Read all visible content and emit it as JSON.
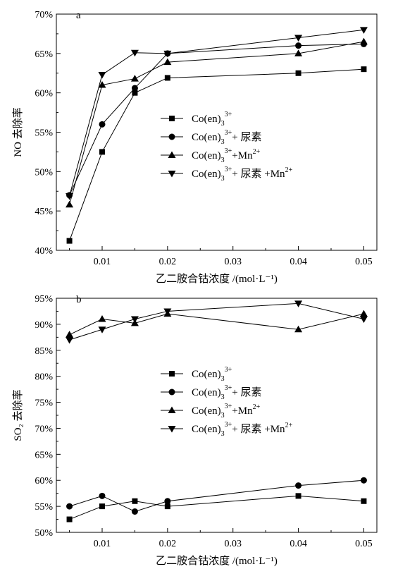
{
  "chart_data": [
    {
      "id": "a",
      "type": "line",
      "panel_label": "a",
      "xlabel": "乙二胺合钴浓度 /(mol·L⁻¹)",
      "ylabel": "NO 去除率",
      "x": [
        0.005,
        0.01,
        0.015,
        0.02,
        0.04,
        0.05
      ],
      "xlim": [
        0.003,
        0.052
      ],
      "ylim": [
        40,
        70
      ],
      "xticks": [
        0.01,
        0.02,
        0.03,
        0.04,
        0.05
      ],
      "xtick_labels": [
        "0.01",
        "0.02",
        "0.03",
        "0.04",
        "0.05"
      ],
      "yticks": [
        40,
        45,
        50,
        55,
        60,
        65,
        70
      ],
      "ytick_labels": [
        "40%",
        "45%",
        "50%",
        "55%",
        "60%",
        "65%",
        "70%"
      ],
      "grid": false,
      "legend_position": "center-right",
      "series": [
        {
          "name": "Co(en)3 3+",
          "label_base": "Co(en)",
          "label_sub": "3",
          "label_sup": "3+",
          "label_tail": "",
          "label_tail_sup": "",
          "marker": "square",
          "values": [
            41.2,
            52.5,
            60.0,
            61.9,
            62.5,
            63.0
          ]
        },
        {
          "name": "Co(en)3 3+ + 尿素",
          "label_base": "Co(en)",
          "label_sub": "3",
          "label_sup": "3+",
          "label_tail": "+ 尿素",
          "label_tail_sup": "",
          "marker": "circle",
          "values": [
            47.0,
            56.0,
            60.6,
            65.0,
            66.0,
            66.2
          ]
        },
        {
          "name": "Co(en)3 3+ +Mn2+",
          "label_base": "Co(en)",
          "label_sub": "3",
          "label_sup": "3+",
          "label_tail": "+Mn",
          "label_tail_sup": "2+",
          "marker": "triangle-up",
          "values": [
            45.8,
            61.0,
            61.8,
            63.9,
            65.0,
            66.5
          ]
        },
        {
          "name": "Co(en)3 3+ + 尿素 +Mn2+",
          "label_base": "Co(en)",
          "label_sub": "3",
          "label_sup": "3+",
          "label_tail": "+ 尿素 +Mn",
          "label_tail_sup": "2+",
          "marker": "triangle-down",
          "values": [
            46.9,
            62.3,
            65.1,
            65.0,
            67.0,
            68.0
          ]
        }
      ]
    },
    {
      "id": "b",
      "type": "line",
      "panel_label": "b",
      "xlabel": "乙二胺合钴浓度 /(mol·L⁻¹)",
      "ylabel": "SO₂ 去除率",
      "x": [
        0.005,
        0.01,
        0.015,
        0.02,
        0.04,
        0.05
      ],
      "xlim": [
        0.003,
        0.052
      ],
      "ylim": [
        50,
        95
      ],
      "xticks": [
        0.01,
        0.02,
        0.03,
        0.04,
        0.05
      ],
      "xtick_labels": [
        "0.01",
        "0.02",
        "0.03",
        "0.04",
        "0.05"
      ],
      "yticks": [
        50,
        55,
        60,
        65,
        70,
        75,
        80,
        85,
        90,
        95
      ],
      "ytick_labels": [
        "50%",
        "55%",
        "60%",
        "65%",
        "70%",
        "75%",
        "80%",
        "85%",
        "90%",
        "95%"
      ],
      "grid": false,
      "legend_position": "center",
      "series": [
        {
          "name": "Co(en)3 3+",
          "label_base": "Co(en)",
          "label_sub": "3",
          "label_sup": "3+",
          "label_tail": "",
          "label_tail_sup": "",
          "marker": "square",
          "values": [
            52.5,
            55.0,
            56.0,
            55.0,
            57.0,
            56.0
          ]
        },
        {
          "name": "Co(en)3 3+ + 尿素",
          "label_base": "Co(en)",
          "label_sub": "3",
          "label_sup": "3+",
          "label_tail": "+ 尿素",
          "label_tail_sup": "",
          "marker": "circle",
          "values": [
            55.0,
            57.0,
            54.0,
            56.0,
            59.0,
            60.0
          ]
        },
        {
          "name": "Co(en)3 3+ +Mn2+",
          "label_base": "Co(en)",
          "label_sub": "3",
          "label_sup": "3+",
          "label_tail": "+Mn",
          "label_tail_sup": "2+",
          "marker": "triangle-up",
          "values": [
            88.0,
            91.0,
            90.2,
            92.0,
            89.0,
            92.0
          ]
        },
        {
          "name": "Co(en)3 3+ + 尿素 +Mn2+",
          "label_base": "Co(en)",
          "label_sub": "3",
          "label_sup": "3+",
          "label_tail": "+ 尿素 +Mn",
          "label_tail_sup": "2+",
          "marker": "triangle-down",
          "values": [
            87.0,
            89.0,
            91.0,
            92.5,
            94.0,
            91.0
          ]
        }
      ]
    }
  ]
}
